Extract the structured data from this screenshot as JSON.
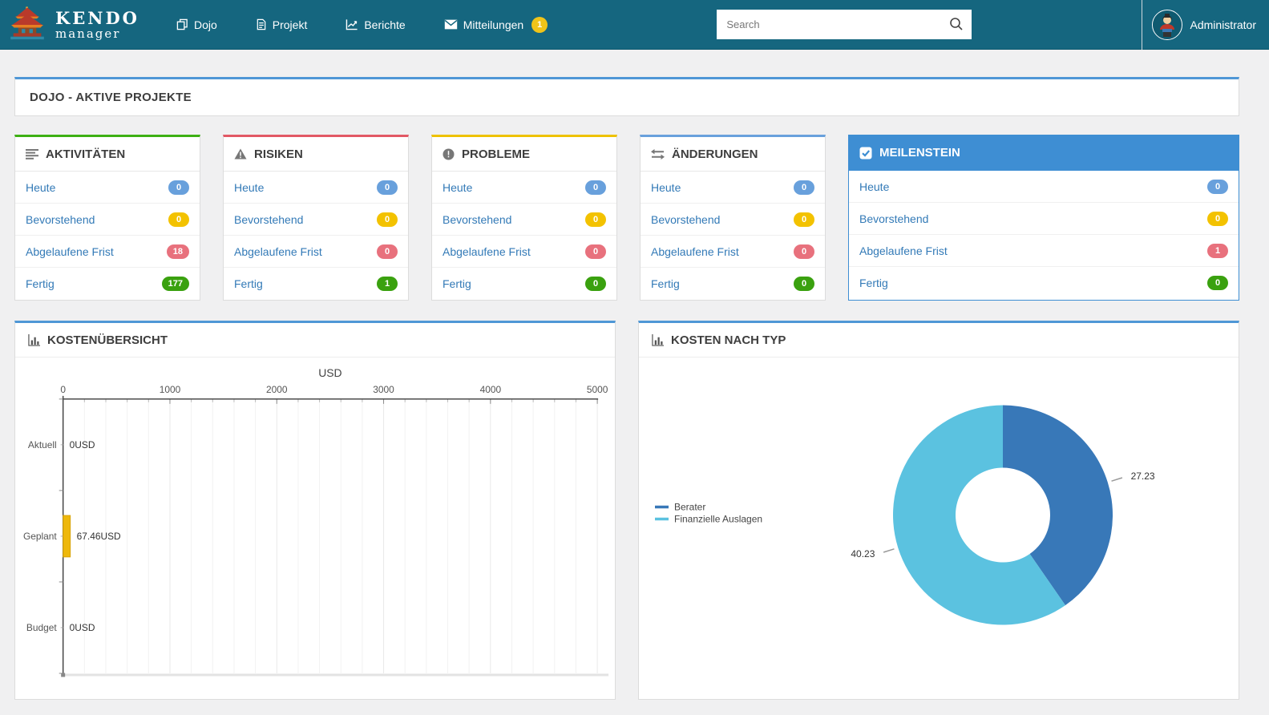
{
  "colors": {
    "navbar_bg": "#15667f",
    "panel_accent_blue": "#4f97d6",
    "card_accent_green": "#3db014",
    "card_accent_red": "#e25865",
    "card_accent_yellow": "#eec200",
    "card_accent_blue": "#68a0dc",
    "milestone_header_blue": "#3e8ed3",
    "badge_blue": "#68a0dc",
    "badge_yellow": "#f3c200",
    "badge_red": "#e8717d",
    "badge_green": "#3aa10f",
    "link_blue": "#337ab7",
    "nav_badge_yellow": "#f0c419",
    "bar_yellow": "#eeb80c",
    "donut_dark_blue": "#3878b8",
    "donut_light_blue": "#5bc2e0"
  },
  "navbar": {
    "brand_line1": "KENDO",
    "brand_line2": "manager",
    "brand_icon": "pagoda-logo",
    "items": [
      {
        "label": "Dojo",
        "icon": "dojo-windows-icon"
      },
      {
        "label": "Projekt",
        "icon": "document-icon"
      },
      {
        "label": "Berichte",
        "icon": "line-chart-icon"
      },
      {
        "label": "Mitteilungen",
        "icon": "envelope-icon",
        "badge": "1"
      }
    ],
    "search_placeholder": "Search",
    "search_icon": "search-icon",
    "username": "Administrator"
  },
  "page_header": {
    "title": "DOJO - AKTIVE PROJEKTE"
  },
  "summary_cards": [
    {
      "title": "AKTIVITÄTEN",
      "icon": "list-lines-icon",
      "accent": "green",
      "rows": [
        {
          "label": "Heute",
          "value": "0",
          "badge": "blue"
        },
        {
          "label": "Bevorstehend",
          "value": "0",
          "badge": "yellow"
        },
        {
          "label": "Abgelaufene Frist",
          "value": "18",
          "badge": "red"
        },
        {
          "label": "Fertig",
          "value": "177",
          "badge": "green"
        }
      ]
    },
    {
      "title": "RISIKEN",
      "icon": "warning-triangle-icon",
      "accent": "red",
      "rows": [
        {
          "label": "Heute",
          "value": "0",
          "badge": "blue"
        },
        {
          "label": "Bevorstehend",
          "value": "0",
          "badge": "yellow"
        },
        {
          "label": "Abgelaufene Frist",
          "value": "0",
          "badge": "red"
        },
        {
          "label": "Fertig",
          "value": "1",
          "badge": "green"
        }
      ]
    },
    {
      "title": "PROBLEME",
      "icon": "exclamation-circle-icon",
      "accent": "yellow",
      "rows": [
        {
          "label": "Heute",
          "value": "0",
          "badge": "blue"
        },
        {
          "label": "Bevorstehend",
          "value": "0",
          "badge": "yellow"
        },
        {
          "label": "Abgelaufene Frist",
          "value": "0",
          "badge": "red"
        },
        {
          "label": "Fertig",
          "value": "0",
          "badge": "green"
        }
      ]
    },
    {
      "title": "ÄNDERUNGEN",
      "icon": "swap-arrows-icon",
      "accent": "blue",
      "rows": [
        {
          "label": "Heute",
          "value": "0",
          "badge": "blue"
        },
        {
          "label": "Bevorstehend",
          "value": "0",
          "badge": "yellow"
        },
        {
          "label": "Abgelaufene Frist",
          "value": "0",
          "badge": "red"
        },
        {
          "label": "Fertig",
          "value": "0",
          "badge": "green"
        }
      ]
    },
    {
      "title": "MEILENSTEIN",
      "icon": "check-square-icon",
      "accent": "filled-blue",
      "rows": [
        {
          "label": "Heute",
          "value": "0",
          "badge": "blue"
        },
        {
          "label": "Bevorstehend",
          "value": "0",
          "badge": "yellow"
        },
        {
          "label": "Abgelaufene Frist",
          "value": "1",
          "badge": "red"
        },
        {
          "label": "Fertig",
          "value": "0",
          "badge": "green"
        }
      ]
    }
  ],
  "chart_data": [
    {
      "type": "bar",
      "orientation": "horizontal",
      "title": "KOSTENÜBERSICHT",
      "panel_icon": "bar-chart-icon",
      "axis_title": "USD",
      "categories": [
        "Aktuell",
        "Geplant",
        "Budget"
      ],
      "values": [
        0,
        67.46,
        0
      ],
      "value_labels": [
        "0USD",
        "67.46USD",
        "0USD"
      ],
      "xlim": [
        0,
        5000
      ],
      "x_ticks": [
        0,
        1000,
        2000,
        3000,
        4000,
        5000
      ],
      "minor_tick_step": 200,
      "bar_color": "#eeb80c",
      "grid": true,
      "legend_position": "none"
    },
    {
      "type": "pie",
      "subtype": "donut",
      "title": "KOSTEN NACH TYP",
      "panel_icon": "bar-chart-icon",
      "series": [
        {
          "name": "Berater",
          "value": 27.23,
          "color": "#3878b8"
        },
        {
          "name": "Finanzielle Auslagen",
          "value": 40.23,
          "color": "#5bc2e0"
        }
      ],
      "labels": [
        "27.23",
        "40.23"
      ],
      "legend_position": "left",
      "start_angle_deg": 0
    }
  ]
}
